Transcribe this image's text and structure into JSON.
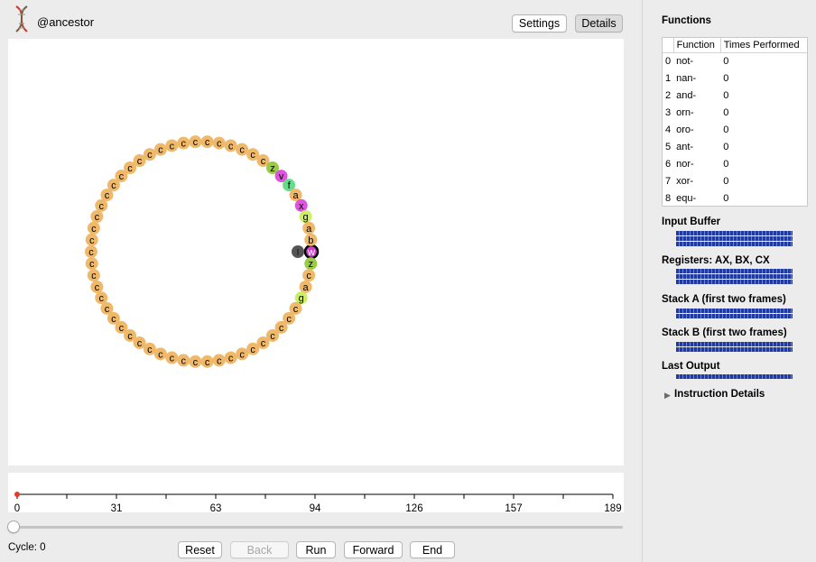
{
  "header": {
    "organism_name": "@ancestor",
    "settings_label": "Settings",
    "details_label": "Details"
  },
  "genome": {
    "tokens": [
      "w",
      "z",
      "c",
      "a",
      "g",
      "c",
      "c",
      "c",
      "c",
      "c",
      "c",
      "c",
      "c",
      "c",
      "c",
      "c",
      "c",
      "c",
      "c",
      "c",
      "c",
      "c",
      "c",
      "c",
      "c",
      "c",
      "c",
      "c",
      "c",
      "c",
      "c",
      "c",
      "c",
      "c",
      "c",
      "c",
      "c",
      "c",
      "c",
      "c",
      "c",
      "c",
      "c",
      "c",
      "c",
      "c",
      "c",
      "c",
      "c",
      "c",
      "z",
      "v",
      "f",
      "a",
      "x",
      "g",
      "a",
      "b"
    ],
    "colors": [
      "#cc44cc",
      "#99cc44",
      "#f0b96a",
      "#f0b96a",
      "#ccee66",
      "#f0b96a",
      "#f0b96a",
      "#f0b96a",
      "#f0b96a",
      "#f0b96a",
      "#f0b96a",
      "#f0b96a",
      "#f0b96a",
      "#f0b96a",
      "#f0b96a",
      "#f0b96a",
      "#f0b96a",
      "#f0b96a",
      "#f0b96a",
      "#f0b96a",
      "#f0b96a",
      "#f0b96a",
      "#f0b96a",
      "#f0b96a",
      "#f0b96a",
      "#f0b96a",
      "#f0b96a",
      "#f0b96a",
      "#f0b96a",
      "#f0b96a",
      "#f0b96a",
      "#f0b96a",
      "#f0b96a",
      "#f0b96a",
      "#f0b96a",
      "#f0b96a",
      "#f0b96a",
      "#f0b96a",
      "#f0b96a",
      "#f0b96a",
      "#f0b96a",
      "#f0b96a",
      "#f0b96a",
      "#f0b96a",
      "#f0b96a",
      "#f0b96a",
      "#f0b96a",
      "#f0b96a",
      "#f0b96a",
      "#f0b96a",
      "#99cc44",
      "#dd55dd",
      "#66dd88",
      "#f0b96a",
      "#dd55dd",
      "#ccee66",
      "#f0b96a",
      "#f0b96a"
    ],
    "head_label": "I",
    "head_color": "#555555",
    "current_index": 0
  },
  "timeline": {
    "ticks": [
      "0",
      "31",
      "63",
      "94",
      "126",
      "157",
      "189"
    ],
    "max": 189,
    "marker_value": 0,
    "marker_color": "#e53a2b"
  },
  "slider": {
    "value": 0
  },
  "cycle_text": "Cycle: 0",
  "controls": {
    "reset": "Reset",
    "back": "Back",
    "run": "Run",
    "forward": "Forward",
    "end": "End"
  },
  "functions": {
    "title": "Functions",
    "col_function": "Function",
    "col_times": "Times Performed",
    "rows": [
      {
        "idx": "0",
        "name": "not-",
        "times": "0"
      },
      {
        "idx": "1",
        "name": "nan-",
        "times": "0"
      },
      {
        "idx": "2",
        "name": "and-",
        "times": "0"
      },
      {
        "idx": "3",
        "name": "orn-",
        "times": "0"
      },
      {
        "idx": "4",
        "name": "oro-",
        "times": "0"
      },
      {
        "idx": "5",
        "name": "ant-",
        "times": "0"
      },
      {
        "idx": "6",
        "name": "nor-",
        "times": "0"
      },
      {
        "idx": "7",
        "name": "xor-",
        "times": "0"
      },
      {
        "idx": "8",
        "name": "equ-",
        "times": "0"
      }
    ]
  },
  "panels": {
    "input_buffer": "Input Buffer",
    "registers": "Registers: AX, BX, CX",
    "stack_a": "Stack A (first two frames)",
    "stack_b": "Stack B (first two frames)",
    "last_output": "Last Output",
    "instruction_details": "Instruction Details"
  },
  "icons": {
    "organism": "dna-icon",
    "disclosure": "disclosure-triangle-icon"
  }
}
